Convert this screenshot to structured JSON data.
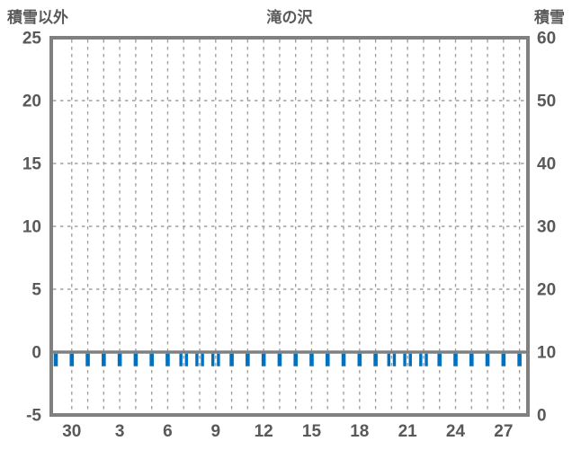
{
  "chart_data": {
    "type": "bar",
    "title": "滝の沢",
    "left_axis": {
      "title": "積雪以外",
      "ticks": [
        25,
        20,
        15,
        10,
        5,
        0,
        -5
      ],
      "range": [
        -5,
        25
      ]
    },
    "right_axis": {
      "title": "積雪",
      "ticks": [
        60,
        50,
        40,
        30,
        20,
        10,
        0
      ],
      "range": [
        0,
        60
      ]
    },
    "x_axis": {
      "tick_labels": [
        "30",
        "3",
        "6",
        "9",
        "12",
        "15",
        "18",
        "21",
        "24",
        "27"
      ],
      "tick_slots": [
        1,
        4,
        7,
        10,
        13,
        16,
        19,
        22,
        25,
        28
      ],
      "num_slots": 30
    },
    "grid": {
      "style": "dashed",
      "h_values_left_axis": [
        20,
        15,
        10,
        5
      ],
      "v_slots_from": 1,
      "v_slots_to": 29
    },
    "zero_line_left_axis": 0,
    "series": [
      {
        "name": "bar-marks",
        "color": "#0070C0",
        "bar_value_left_axis": -1,
        "all_slots_have_bar": true,
        "slots_double": [
          8,
          9,
          10,
          21,
          22,
          23
        ]
      }
    ],
    "colors": {
      "axis": "#808080",
      "grid": "#A0A0A0",
      "text": "#595959",
      "bar": "#0070C0",
      "background": "#FFFFFF"
    },
    "legend": null
  }
}
